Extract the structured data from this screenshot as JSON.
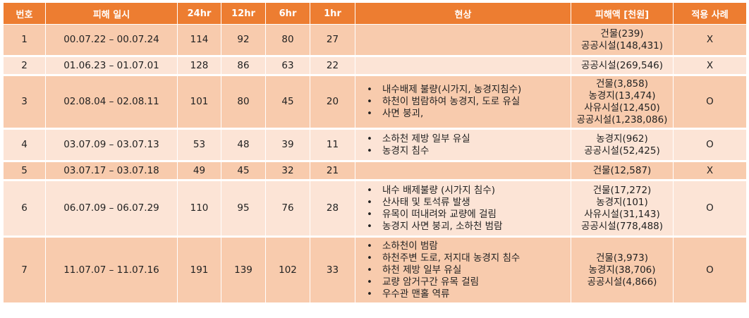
{
  "headers": [
    "번호",
    "피해 일시",
    "24hr",
    "12hr",
    "6hr",
    "1hr",
    "현상",
    "피해액 [천원]",
    "적용 사례"
  ],
  "rows": [
    {
      "no": "1",
      "period": "00.07.22 – 00.07.24",
      "h24": "114",
      "h12": "92",
      "h6": "80",
      "h1": "27",
      "phenomena": [],
      "damage": [
        "건물(239)",
        "공공시설(148,431)"
      ],
      "applied": "X"
    },
    {
      "no": "2",
      "period": "01.06.23 – 01.07.01",
      "h24": "128",
      "h12": "86",
      "h6": "63",
      "h1": "22",
      "phenomena": [],
      "damage": [
        "공공시설(269,546)"
      ],
      "applied": "X"
    },
    {
      "no": "3",
      "period": "02.08.04 – 02.08.11",
      "h24": "101",
      "h12": "80",
      "h6": "45",
      "h1": "20",
      "phenomena": [
        "내수배제 불량(시가지, 농경지침수)",
        "하천이 범람하여 농경지, 도로 유실",
        "사면 붕괴,"
      ],
      "damage": [
        "건물(3,858)",
        "농경지(13,474)",
        "사유시설(12,450)",
        "공공시설(1,238,086)"
      ],
      "applied": "O"
    },
    {
      "no": "4",
      "period": "03.07.09 – 03.07.13",
      "h24": "53",
      "h12": "48",
      "h6": "39",
      "h1": "11",
      "phenomena": [
        "소하천 제방 일부 유실",
        "농경지 침수"
      ],
      "damage": [
        "농경지(962)",
        "공공시설(52,425)"
      ],
      "applied": "O"
    },
    {
      "no": "5",
      "period": "03.07.17 – 03.07.18",
      "h24": "49",
      "h12": "45",
      "h6": "32",
      "h1": "21",
      "phenomena": [],
      "damage": [
        "건물(12,587)"
      ],
      "applied": "X"
    },
    {
      "no": "6",
      "period": "06.07.09 – 06.07.29",
      "h24": "110",
      "h12": "95",
      "h6": "76",
      "h1": "28",
      "phenomena": [
        "내수 배제불량 (시가지 침수)",
        "산사태 및 토석류 발생",
        "유목이 떠내려와 교량에 걸림",
        "농경지 사면 붕괴, 소하천 범람"
      ],
      "damage": [
        "건물(17,272)",
        "농경지(101)",
        "사유시설(31,143)",
        "공공시설(778,488)"
      ],
      "applied": "O"
    },
    {
      "no": "7",
      "period": "11.07.07 – 11.07.16",
      "h24": "191",
      "h12": "139",
      "h6": "102",
      "h1": "33",
      "phenomena": [
        "소하천이 범람",
        "하천주변 도로, 저지대 농경지 침수",
        "하천 제방 일부 유실",
        "교량 암거구간 유목 걸림",
        "우수관 맨홀 역류"
      ],
      "damage": [
        "건물(3,973)",
        "농경지(38,706)",
        "공공시설(4,866)"
      ],
      "applied": "O"
    }
  ]
}
